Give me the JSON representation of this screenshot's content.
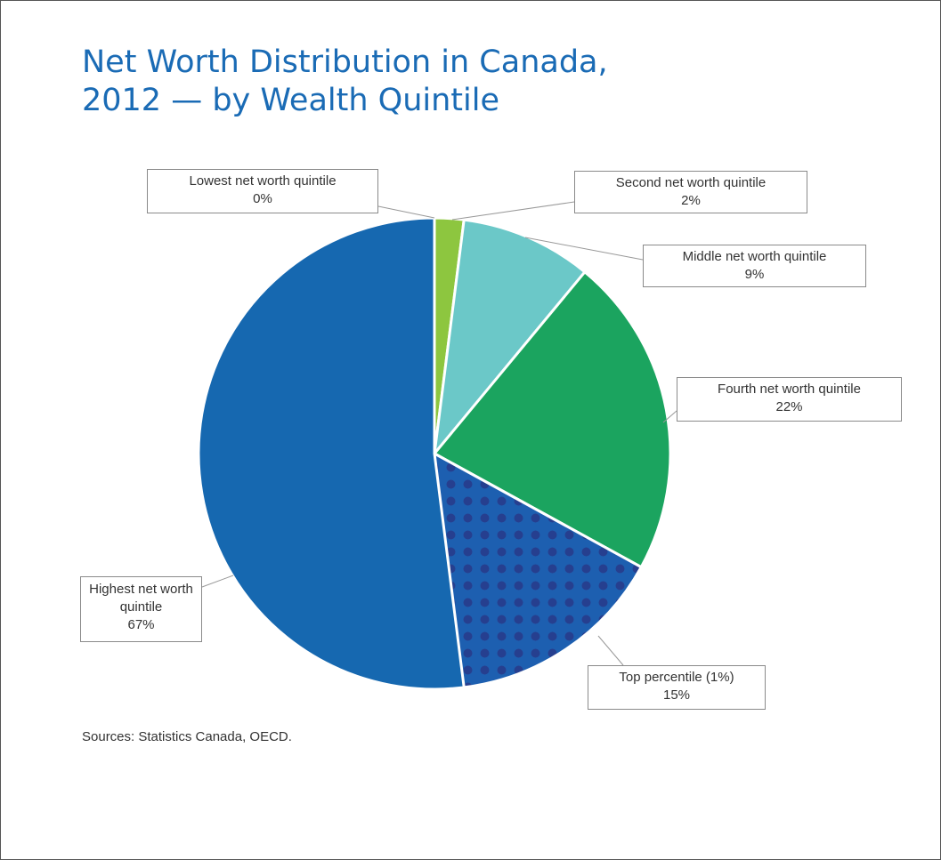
{
  "chart_data": {
    "type": "pie",
    "title": [
      "Net Worth Distribution in Canada,",
      "2012 — by Wealth Quintile"
    ],
    "source": "Sources: Statistics Canada, OECD.",
    "start_angle": 0,
    "direction": "clockwise",
    "slices": [
      {
        "name": "Lowest net worth quintile",
        "value": 0,
        "value_label": "0%",
        "color": "#8dc63f"
      },
      {
        "name": "Second net worth quintile",
        "value": 2,
        "value_label": "2%",
        "color": "#8dc63f"
      },
      {
        "name": "Middle net worth quintile",
        "value": 9,
        "value_label": "9%",
        "color": "#6bc8c8"
      },
      {
        "name": "Fourth net worth quintile",
        "value": 22,
        "value_label": "22%",
        "color": "#1ba45f"
      },
      {
        "name": "Highest net worth quintile",
        "value": 67,
        "value_label": "67%",
        "color": "#1668b0",
        "parts": [
          {
            "name": "Top percentile (1%)",
            "value": 15,
            "value_label": "15%",
            "color": "#1d5fb0",
            "pattern": "dots",
            "dot_color": "#263f8f"
          }
        ]
      }
    ]
  }
}
